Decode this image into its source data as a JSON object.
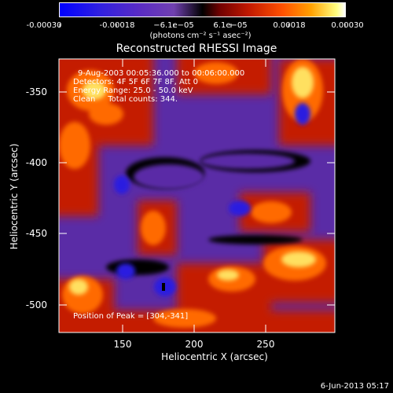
{
  "colorbar": {
    "tick_labels": [
      "-0.00030",
      "-0.00018",
      "−6.1e−05",
      "6.1e−05",
      "0.00018",
      "0.00030"
    ],
    "units": "(photons cm⁻² s⁻¹ asec⁻²)"
  },
  "plot": {
    "title": "Reconstructed RHESSI Image",
    "annotation_line1": "9-Aug-2003 00:05:36.000 to 00:06:00.000",
    "annotation_line2": "Detectors: 4F 5F 6F 7F 8F, Att 0",
    "annotation_line3": "Energy Range: 25.0 - 50.0 keV",
    "annotation_line4": "Clean     Total counts: 344.",
    "peak_text": "Position of Peak = [304,-341]"
  },
  "footer": {
    "timestamp": "6-Jun-2013 05:17"
  },
  "chart_data": {
    "type": "heatmap",
    "title": "Reconstructed RHESSI Image",
    "xlabel": "Heliocentric X (arcsec)",
    "ylabel": "Heliocentric Y (arcsec)",
    "xlim": [
      118,
      310
    ],
    "ylim": [
      -520,
      -333
    ],
    "x_ticks": [
      "150",
      "200",
      "250",
      "300"
    ],
    "y_ticks": [
      "-350",
      "-400",
      "-450",
      "-500"
    ],
    "colorbar_range": [
      -0.0003,
      0.0003
    ],
    "peak_position": [
      304,
      -341
    ]
  }
}
